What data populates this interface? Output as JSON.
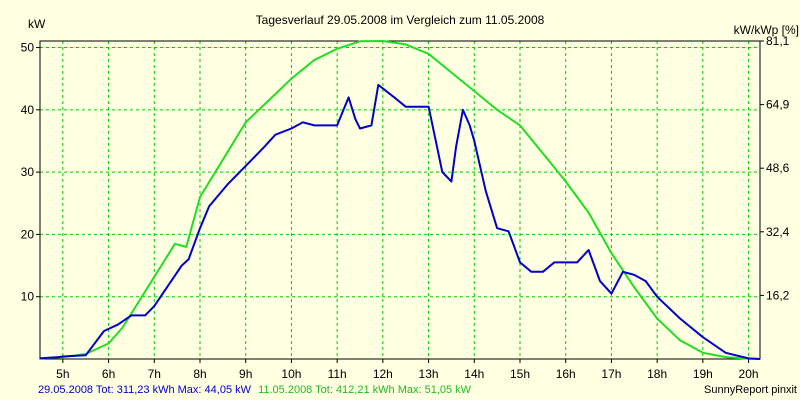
{
  "chart_data": {
    "type": "line",
    "title": "Tagesverlauf 29.05.2008 im Vergleich zum 11.05.2008",
    "ylabel_left": "kW",
    "ylabel_right": "kW/kWp [%]",
    "xlim": [
      4.5,
      20.25
    ],
    "ylim": [
      0,
      51.05
    ],
    "grid": true,
    "x_ticks": [
      {
        "value": 5,
        "label": "5h"
      },
      {
        "value": 6,
        "label": "6h"
      },
      {
        "value": 7,
        "label": "7h"
      },
      {
        "value": 8,
        "label": "8h"
      },
      {
        "value": 9,
        "label": "9h"
      },
      {
        "value": 10,
        "label": "10h"
      },
      {
        "value": 11,
        "label": "11h"
      },
      {
        "value": 12,
        "label": "12h"
      },
      {
        "value": 13,
        "label": "13h"
      },
      {
        "value": 14,
        "label": "14h"
      },
      {
        "value": 15,
        "label": "15h"
      },
      {
        "value": 16,
        "label": "16h"
      },
      {
        "value": 17,
        "label": "17h"
      },
      {
        "value": 18,
        "label": "18h"
      },
      {
        "value": 19,
        "label": "19h"
      },
      {
        "value": 20,
        "label": "20h"
      }
    ],
    "y_ticks_left": [
      {
        "value": 10,
        "label": "10"
      },
      {
        "value": 20,
        "label": "20"
      },
      {
        "value": 30,
        "label": "30"
      },
      {
        "value": 40,
        "label": "40"
      },
      {
        "value": 50,
        "label": "50"
      }
    ],
    "y_ticks_right": [
      {
        "value": 10.21,
        "label": "16,2"
      },
      {
        "value": 20.42,
        "label": "32,4"
      },
      {
        "value": 30.63,
        "label": "48,6"
      },
      {
        "value": 40.84,
        "label": "64,9"
      },
      {
        "value": 51.05,
        "label": "81,1"
      }
    ],
    "series": [
      {
        "color": "#22dd22",
        "x": [
          4.5,
          5.0,
          5.5,
          6.0,
          6.3,
          6.6,
          6.9,
          7.2,
          7.45,
          7.7,
          8.0,
          8.5,
          9.0,
          9.5,
          10.0,
          10.5,
          11.0,
          11.5,
          12.0,
          12.5,
          13.0,
          13.5,
          14.0,
          14.5,
          15.0,
          15.5,
          16.0,
          16.5,
          17.0,
          17.5,
          18.0,
          18.5,
          19.0,
          19.5,
          20.0,
          20.25
        ],
        "y": [
          0.1,
          0.3,
          0.8,
          2.5,
          5.0,
          8.5,
          12.0,
          15.5,
          18.5,
          18.0,
          26.0,
          32.0,
          38.0,
          41.5,
          45.0,
          48.0,
          49.8,
          51.0,
          51.05,
          50.5,
          49.0,
          46.0,
          43.0,
          40.0,
          37.5,
          33.0,
          28.5,
          23.5,
          17.0,
          11.5,
          6.5,
          3.0,
          1.0,
          0.3,
          0.05,
          0.0
        ]
      },
      {
        "color": "#0000cc",
        "x": [
          4.5,
          4.9,
          5.0,
          5.5,
          5.9,
          6.2,
          6.5,
          6.8,
          7.0,
          7.6,
          7.75,
          8.0,
          8.2,
          8.6,
          9.0,
          9.4,
          9.65,
          10.0,
          10.25,
          10.5,
          10.75,
          11.0,
          11.25,
          11.4,
          11.5,
          11.75,
          11.9,
          12.25,
          12.5,
          12.75,
          13.0,
          13.3,
          13.5,
          13.6,
          13.75,
          13.9,
          14.0,
          14.25,
          14.5,
          14.75,
          15.0,
          15.25,
          15.5,
          15.75,
          16.0,
          16.25,
          16.5,
          16.75,
          17.0,
          17.25,
          17.5,
          17.75,
          18.0,
          18.5,
          19.0,
          19.5,
          20.0,
          20.25
        ],
        "y": [
          0.1,
          0.3,
          0.4,
          0.6,
          4.5,
          5.5,
          7.0,
          7.0,
          8.5,
          15.0,
          16.0,
          21.0,
          24.5,
          28.0,
          31.0,
          34.0,
          36.0,
          37.0,
          38.0,
          37.5,
          37.5,
          37.5,
          42.0,
          38.5,
          37.0,
          37.5,
          44.0,
          42.0,
          40.5,
          40.5,
          40.5,
          30.0,
          28.5,
          34.0,
          40.0,
          37.5,
          35.0,
          27.0,
          21.0,
          20.5,
          15.5,
          14.0,
          14.0,
          15.5,
          15.5,
          15.5,
          17.5,
          12.5,
          10.5,
          14.0,
          13.5,
          12.5,
          10.0,
          6.5,
          3.5,
          1.0,
          0.1,
          0.0
        ]
      }
    ],
    "footer_left_blue": "29.05.2008 Tot: 311,23 kWh Max: 44,05 kW",
    "footer_left_green": "11.05.2008 Tot: 412,21 kWh Max: 51,05 kW",
    "footer_right": "SunnyReport pinxit"
  }
}
